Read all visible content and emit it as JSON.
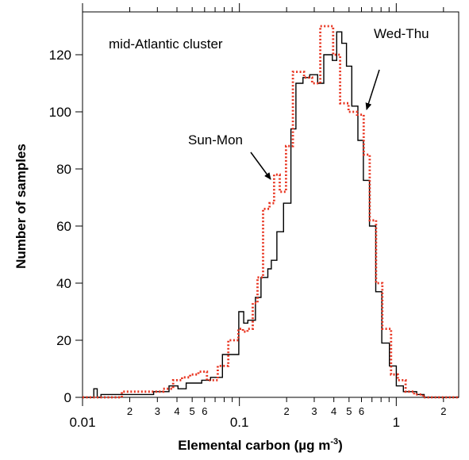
{
  "chart_data": {
    "type": "line",
    "xlabel": "Elemental carbon (µg m",
    "xlabel_sup": "-3",
    "xlabel_close": ")",
    "ylabel": "Number of samples",
    "x_scale": "log",
    "xlim": [
      0.01,
      2.5
    ],
    "ylim": [
      0,
      135
    ],
    "x_major_ticks": [
      {
        "value": 0.01,
        "label": "0.01"
      },
      {
        "value": 0.1,
        "label": "0.1"
      },
      {
        "value": 1,
        "label": "1"
      }
    ],
    "x_minor_ticks": [
      {
        "value": 0.02,
        "label": "2"
      },
      {
        "value": 0.03,
        "label": "3"
      },
      {
        "value": 0.04,
        "label": "4"
      },
      {
        "value": 0.05,
        "label": "5"
      },
      {
        "value": 0.06,
        "label": "6"
      },
      {
        "value": 0.2,
        "label": "2"
      },
      {
        "value": 0.3,
        "label": "3"
      },
      {
        "value": 0.4,
        "label": "4"
      },
      {
        "value": 0.5,
        "label": "5"
      },
      {
        "value": 0.6,
        "label": "6"
      },
      {
        "value": 2,
        "label": "2"
      }
    ],
    "x_minor_unlabeled": [
      0.07,
      0.08,
      0.09,
      0.7,
      0.8,
      0.9
    ],
    "y_ticks": [
      0,
      20,
      40,
      60,
      80,
      100,
      120
    ],
    "annotation_text": "mid-Atlantic cluster",
    "series": [
      {
        "name": "Wed-Thu",
        "color": "#000000",
        "style": "solid",
        "x": [
          0.01,
          0.0118,
          0.0124,
          0.0131,
          0.0175,
          0.0228,
          0.0284,
          0.0309,
          0.0356,
          0.0406,
          0.0458,
          0.0515,
          0.0575,
          0.0655,
          0.078,
          0.0991,
          0.1065,
          0.1132,
          0.1266,
          0.1374,
          0.1518,
          0.1597,
          0.1734,
          0.1911,
          0.2131,
          0.2293,
          0.2544,
          0.2808,
          0.3156,
          0.345,
          0.3912,
          0.417,
          0.4494,
          0.4815,
          0.5208,
          0.5695,
          0.6172,
          0.6747,
          0.7403,
          0.8082,
          0.9046,
          1.0009,
          1.1095,
          1.2147,
          1.3495,
          1.5065,
          1.6711,
          1.881,
          2.0712,
          2.3
        ],
        "y": [
          0,
          3,
          0,
          1,
          1,
          1,
          2,
          2,
          4,
          3,
          5,
          5,
          6,
          7,
          15,
          30,
          26,
          27,
          35,
          42,
          45,
          48,
          58,
          68,
          94,
          110,
          112,
          113,
          110,
          120,
          118,
          128,
          124,
          116,
          102,
          90,
          76,
          60,
          37,
          19,
          11,
          4,
          2,
          2,
          1,
          0,
          0,
          0,
          0,
          0
        ]
      },
      {
        "name": "Sun-Mon",
        "color": "#e8321e",
        "style": "dotted",
        "x": [
          0.01,
          0.0156,
          0.0178,
          0.0284,
          0.0327,
          0.0378,
          0.0431,
          0.0485,
          0.0548,
          0.0621,
          0.0728,
          0.085,
          0.0985,
          0.1053,
          0.1126,
          0.1217,
          0.1305,
          0.1416,
          0.1557,
          0.1664,
          0.1807,
          0.1983,
          0.2193,
          0.2332,
          0.2581,
          0.2907,
          0.3277,
          0.3638,
          0.3961,
          0.4389,
          0.4962,
          0.5625,
          0.6201,
          0.6775,
          0.7437,
          0.8149,
          0.9271,
          1.0234,
          1.1464,
          1.3001,
          1.4806,
          1.7066,
          1.9385,
          2.2004,
          2.3
        ],
        "y": [
          0,
          0,
          2,
          2,
          3,
          6,
          7,
          8,
          9,
          6,
          11,
          20,
          24,
          23,
          24,
          33,
          42,
          66,
          68,
          78,
          72,
          88,
          114,
          114,
          112,
          110,
          130,
          130,
          120,
          103,
          100,
          99,
          85,
          62,
          40,
          24,
          8,
          6,
          2,
          1,
          0,
          0,
          0,
          0,
          0
        ]
      }
    ]
  }
}
